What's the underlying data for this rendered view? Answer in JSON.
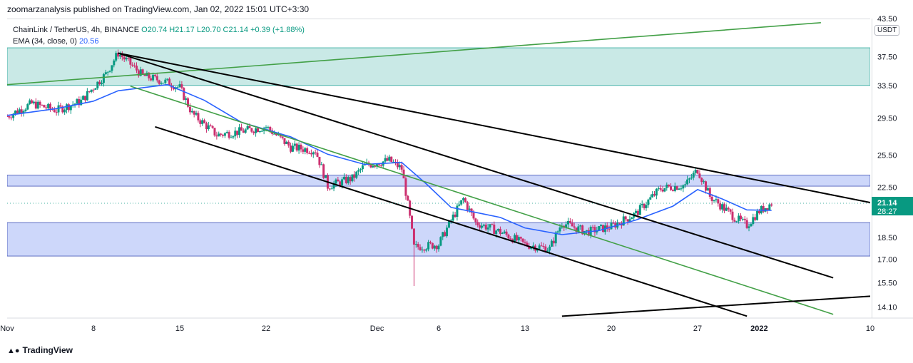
{
  "header": {
    "publisher_line": "zoomarzanalysis published on TradingView.com, Jan 02, 2022 15:01 UTC+3:30"
  },
  "legend": {
    "symbol_line": "ChainLink / TetherUS, 4h, BINANCE",
    "ohlc": "O20.74 H21.17 L20.70 C21.14 +0.39 (+1.88%)",
    "ema_label": "EMA (34, close, 0)",
    "ema_value": "20.56"
  },
  "price_axis": {
    "currency": "USDT",
    "last_price": "21.14",
    "countdown": "28:27"
  },
  "branding": {
    "logo_text": "TradingView",
    "logo_icon": "tradingview-logo-icon"
  },
  "chart_data": {
    "type": "candlestick",
    "symbol": "ChainLink / TetherUS",
    "interval": "4h",
    "exchange": "BINANCE",
    "ylim": [
      13.5,
      43.5
    ],
    "y_scale": "log",
    "y_ticks": [
      "43.50",
      "37.50",
      "33.50",
      "29.50",
      "25.50",
      "22.50",
      "18.50",
      "17.00",
      "15.50",
      "14.10"
    ],
    "x_ticks": [
      {
        "label": "Nov",
        "date": "2021-11-01"
      },
      {
        "label": "8",
        "date": "2021-11-08"
      },
      {
        "label": "15",
        "date": "2021-11-15"
      },
      {
        "label": "22",
        "date": "2021-11-22"
      },
      {
        "label": "Dec",
        "date": "2021-12-01"
      },
      {
        "label": "6",
        "date": "2021-12-06"
      },
      {
        "label": "13",
        "date": "2021-12-13"
      },
      {
        "label": "20",
        "date": "2021-12-20"
      },
      {
        "label": "27",
        "date": "2021-12-27"
      },
      {
        "label": "2022",
        "date": "2022-01-01"
      },
      {
        "label": "10",
        "date": "2022-01-10"
      }
    ],
    "x_range": [
      "2021-11-01",
      "2022-01-10"
    ],
    "ema_path": [
      [
        "2021-11-01",
        29.8
      ],
      [
        "2021-11-05",
        30.6
      ],
      [
        "2021-11-08",
        31.5
      ],
      [
        "2021-11-10",
        32.8
      ],
      [
        "2021-11-14",
        33.6
      ],
      [
        "2021-11-17",
        31.6
      ],
      [
        "2021-11-20",
        29.0
      ],
      [
        "2021-11-24",
        27.4
      ],
      [
        "2021-11-27",
        25.6
      ],
      [
        "2021-11-30",
        24.6
      ],
      [
        "2021-12-03",
        24.8
      ],
      [
        "2021-12-05",
        22.8
      ],
      [
        "2021-12-07",
        20.8
      ],
      [
        "2021-12-09",
        20.4
      ],
      [
        "2021-12-11",
        20.0
      ],
      [
        "2021-12-13",
        19.2
      ],
      [
        "2021-12-16",
        18.7
      ],
      [
        "2021-12-19",
        19.0
      ],
      [
        "2021-12-22",
        19.8
      ],
      [
        "2021-12-25",
        20.9
      ],
      [
        "2021-12-27",
        22.3
      ],
      [
        "2021-12-29",
        21.5
      ],
      [
        "2021-12-31",
        20.6
      ],
      [
        "2022-01-02",
        20.56
      ]
    ],
    "price_path": [
      [
        "2021-11-01",
        29.7
      ],
      [
        "2021-11-03",
        31.2
      ],
      [
        "2021-11-05",
        30.4
      ],
      [
        "2021-11-07",
        31.5
      ],
      [
        "2021-11-09",
        35.0
      ],
      [
        "2021-11-10",
        38.0
      ],
      [
        "2021-11-12",
        34.8
      ],
      [
        "2021-11-14",
        33.9
      ],
      [
        "2021-11-15",
        33.2
      ],
      [
        "2021-11-16",
        30.0
      ],
      [
        "2021-11-18",
        27.6
      ],
      [
        "2021-11-20",
        28.0
      ],
      [
        "2021-11-22",
        28.5
      ],
      [
        "2021-11-24",
        26.3
      ],
      [
        "2021-11-26",
        26.0
      ],
      [
        "2021-11-27",
        22.6
      ],
      [
        "2021-11-29",
        23.3
      ],
      [
        "2021-11-30",
        24.5
      ],
      [
        "2021-12-02",
        25.0
      ],
      [
        "2021-12-03",
        24.2
      ],
      [
        "2021-12-04",
        17.8
      ],
      [
        "2021-12-06",
        18.0
      ],
      [
        "2021-12-08",
        21.5
      ],
      [
        "2021-12-09",
        19.6
      ],
      [
        "2021-12-11",
        18.9
      ],
      [
        "2021-12-13",
        18.0
      ],
      [
        "2021-12-15",
        17.7
      ],
      [
        "2021-12-16",
        19.6
      ],
      [
        "2021-12-18",
        18.9
      ],
      [
        "2021-12-20",
        19.3
      ],
      [
        "2021-12-22",
        20.3
      ],
      [
        "2021-12-24",
        22.4
      ],
      [
        "2021-12-26",
        22.7
      ],
      [
        "2021-12-27",
        24.1
      ],
      [
        "2021-12-28",
        21.7
      ],
      [
        "2021-12-30",
        20.0
      ],
      [
        "2021-12-31",
        19.4
      ],
      [
        "2022-01-01",
        20.5
      ],
      [
        "2022-01-02",
        21.14
      ]
    ],
    "zones": [
      {
        "y_top": 38.8,
        "y_bottom": 33.5,
        "color": "#b2dfdb"
      },
      {
        "y_top": 23.6,
        "y_bottom": 22.6,
        "color": "#b8c6f8"
      },
      {
        "y_top": 19.6,
        "y_bottom": 17.2,
        "color": "#b8c6f8"
      }
    ],
    "trendlines": [
      {
        "color": "#43a047",
        "points": [
          [
            "2021-11-01",
            33.6
          ],
          [
            "2022-01-06",
            42.8
          ]
        ]
      },
      {
        "color": "#000000",
        "points": [
          [
            "2021-11-10",
            38.0
          ],
          [
            "2022-01-10",
            21.2
          ]
        ]
      },
      {
        "color": "#000000",
        "points": [
          [
            "2021-11-10",
            38.0
          ],
          [
            "2022-01-07",
            15.8
          ]
        ]
      },
      {
        "color": "#000000",
        "points": [
          [
            "2021-11-13",
            28.5
          ],
          [
            "2021-12-31",
            13.6
          ]
        ]
      },
      {
        "color": "#43a047",
        "points": [
          [
            "2021-11-11",
            33.4
          ],
          [
            "2022-01-07",
            13.7
          ]
        ]
      },
      {
        "color": "#000000",
        "points": [
          [
            "2021-12-16",
            13.6
          ],
          [
            "2022-01-10",
            14.7
          ]
        ]
      }
    ],
    "colors": {
      "up": "#089981",
      "down": "#cc2f6f",
      "ema": "#2962ff",
      "last_price": "#089981"
    }
  }
}
